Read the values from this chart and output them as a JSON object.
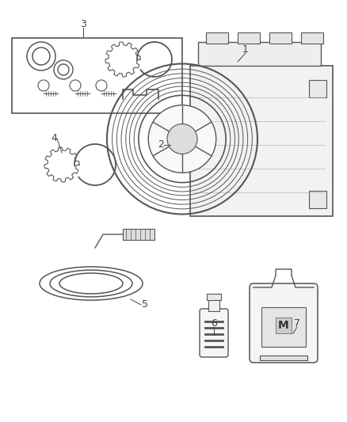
{
  "background_color": "#ffffff",
  "line_color": "#555555",
  "label_color": "#444444",
  "lw": 1.0,
  "fig_w": 4.38,
  "fig_h": 5.33,
  "dpi": 100
}
